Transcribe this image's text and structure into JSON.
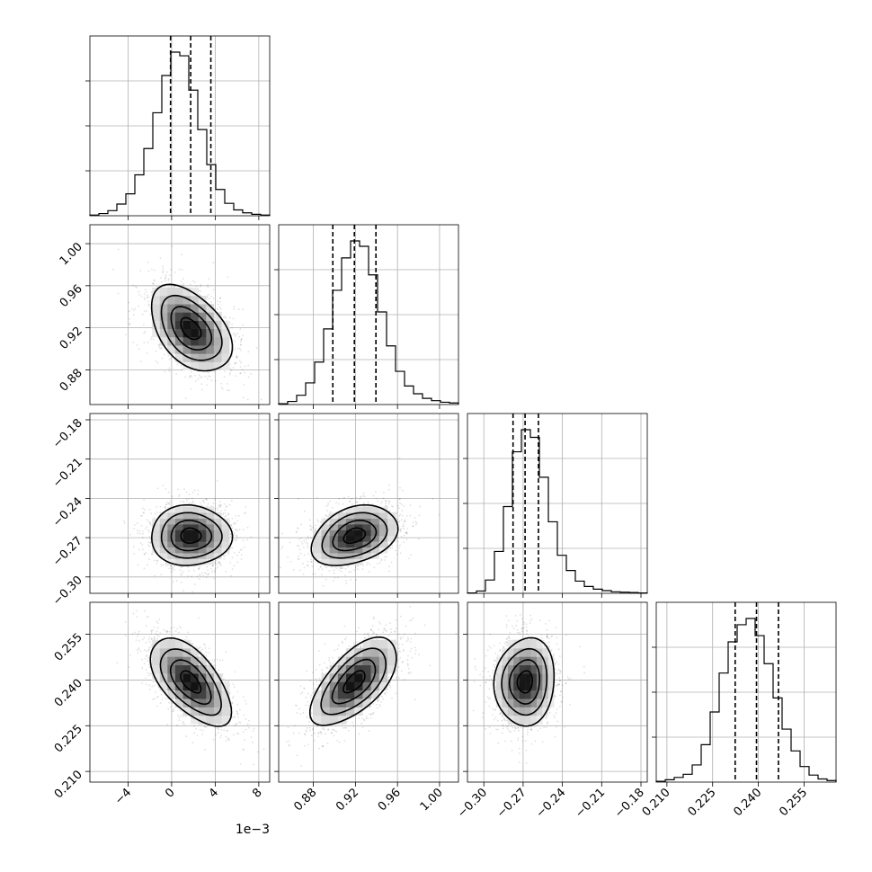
{
  "chart_data": {
    "type": "corner",
    "grid": true,
    "params": [
      {
        "center": 1.75,
        "sigma": 1.85,
        "q": [
          -0.1,
          1.75,
          3.6
        ],
        "range": [
          -7.5,
          9.0
        ],
        "ticks": [
          -4,
          0,
          4,
          8
        ],
        "tick_labels": [
          "−4",
          "0",
          "4",
          "8"
        ],
        "offset_text": "1e−3"
      },
      {
        "center": 0.919,
        "sigma": 0.0205,
        "q": [
          0.8985,
          0.919,
          0.9395
        ],
        "range": [
          0.847,
          1.018
        ],
        "ticks": [
          0.88,
          0.92,
          0.96,
          1.0
        ],
        "tick_labels": [
          "0.88",
          "0.92",
          "0.96",
          "1.00"
        ]
      },
      {
        "center": -0.2685,
        "sigma": 0.0115,
        "q": [
          -0.2777,
          -0.2685,
          -0.2583
        ],
        "range": [
          -0.3125,
          -0.1752
        ],
        "ticks": [
          -0.3,
          -0.27,
          -0.24,
          -0.21,
          -0.18
        ],
        "tick_labels": [
          "−0.30",
          "−0.27",
          "−0.24",
          "−0.21",
          "−0.18"
        ]
      },
      {
        "center": 0.2394,
        "sigma": 0.0072,
        "q": [
          0.2324,
          0.2394,
          0.2466
        ],
        "range": [
          0.2065,
          0.2655
        ],
        "ticks": [
          0.21,
          0.225,
          0.24,
          0.255
        ],
        "tick_labels": [
          "0.210",
          "0.225",
          "0.240",
          "0.255"
        ]
      }
    ],
    "hist_counts": [
      [
        1,
        3,
        7,
        16,
        30,
        56,
        92,
        141,
        192,
        224,
        219,
        172,
        118,
        70,
        36,
        17,
        8,
        4,
        2,
        1
      ],
      [
        1,
        4,
        12,
        28,
        55,
        98,
        148,
        190,
        212,
        205,
        168,
        120,
        76,
        43,
        24,
        14,
        8,
        5,
        3,
        2
      ],
      [
        1,
        6,
        35,
        110,
        228,
        372,
        430,
        410,
        305,
        188,
        100,
        60,
        32,
        18,
        11,
        7,
        4,
        3,
        2,
        1
      ],
      [
        1,
        3,
        6,
        10,
        22,
        48,
        90,
        140,
        180,
        202,
        210,
        188,
        152,
        108,
        68,
        40,
        20,
        9,
        4,
        2
      ]
    ],
    "correlations": [
      {
        "i": 1,
        "j": 0,
        "rho": -0.45
      },
      {
        "i": 2,
        "j": 0,
        "rho": 0.0
      },
      {
        "i": 2,
        "j": 1,
        "rho": 0.33
      },
      {
        "i": 3,
        "j": 0,
        "rho": -0.6
      },
      {
        "i": 3,
        "j": 1,
        "rho": 0.63
      },
      {
        "i": 3,
        "j": 2,
        "rho": 0.08
      }
    ]
  }
}
